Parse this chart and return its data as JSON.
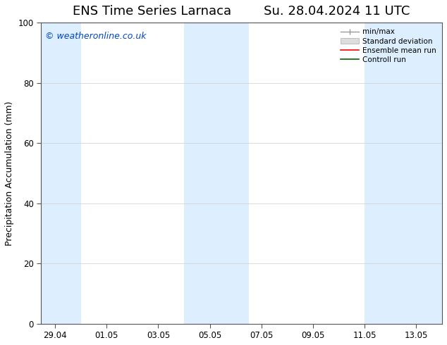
{
  "title": "ENS Time Series Larnaca        Su. 28.04.2024 11 UTC",
  "ylabel": "Precipitation Accumulation (mm)",
  "watermark": "© weatheronline.co.uk",
  "ylim": [
    0,
    100
  ],
  "yticks": [
    0,
    20,
    40,
    60,
    80,
    100
  ],
  "background_color": "#ffffff",
  "plot_bg_color": "#ffffff",
  "shaded_color": "#ddeeff",
  "shaded_regions": [
    {
      "x_start": "2024-04-29",
      "x_end": "2024-04-30"
    },
    {
      "x_start": "2024-05-04",
      "x_end": "2024-05-06"
    },
    {
      "x_start": "2024-05-11",
      "x_end": "2024-05-12"
    },
    {
      "x_start": "2024-05-12",
      "x_end": "2024-05-14"
    }
  ],
  "xtick_labels": [
    "29.04",
    "01.05",
    "03.05",
    "05.05",
    "07.05",
    "09.05",
    "11.05",
    "13.05"
  ],
  "xtick_dates": [
    "2024-04-29",
    "2024-05-01",
    "2024-05-03",
    "2024-05-05",
    "2024-05-07",
    "2024-05-09",
    "2024-05-11",
    "2024-05-13"
  ],
  "x_start": "2024-04-28 11:00",
  "legend_labels": [
    "min/max",
    "Standard deviation",
    "Ensemble mean run",
    "Controll run"
  ],
  "legend_colors": [
    "#aaaaaa",
    "#cccccc",
    "#ff0000",
    "#006600"
  ],
  "legend_line_styles": [
    "-",
    "-",
    "-",
    "-"
  ],
  "title_fontsize": 13,
  "label_fontsize": 9,
  "tick_fontsize": 8.5,
  "watermark_color": "#0044cc",
  "grid_color": "#cccccc"
}
